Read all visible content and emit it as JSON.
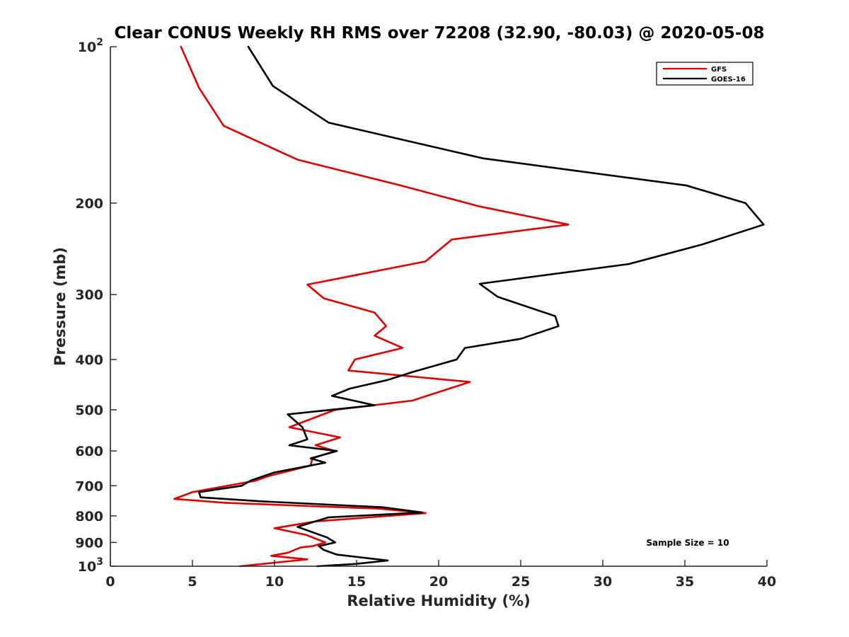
{
  "chart_data": {
    "type": "line",
    "title": "Clear CONUS Weekly RH RMS over 72208 (32.90, -80.03) @ 2020-05-08",
    "xlabel": "Relative Humidity (%)",
    "ylabel": "Pressure (mb)",
    "xlim": [
      0,
      40
    ],
    "ylim": [
      100,
      1000
    ],
    "yscale": "log",
    "y_reversed": true,
    "grid": false,
    "legend_position": "top-right",
    "annotation": "Sample Size = 10",
    "x_ticks": [
      "0",
      "5",
      "10",
      "15",
      "20",
      "25",
      "30",
      "35",
      "40"
    ],
    "y_ticks": [
      {
        "value": 100,
        "base": "10",
        "exp": "2"
      },
      {
        "value": 200,
        "base": "200",
        "exp": ""
      },
      {
        "value": 300,
        "base": "300",
        "exp": ""
      },
      {
        "value": 400,
        "base": "400",
        "exp": ""
      },
      {
        "value": 500,
        "base": "500",
        "exp": ""
      },
      {
        "value": 600,
        "base": "600",
        "exp": ""
      },
      {
        "value": 700,
        "base": "700",
        "exp": ""
      },
      {
        "value": 800,
        "base": "800",
        "exp": ""
      },
      {
        "value": 900,
        "base": "900",
        "exp": ""
      },
      {
        "value": 1000,
        "base": "10",
        "exp": "3"
      }
    ],
    "series": [
      {
        "name": "GFS",
        "color": "#e00000",
        "points": [
          [
            4.3,
            100
          ],
          [
            5.4,
            120
          ],
          [
            6.9,
            142
          ],
          [
            11.4,
            165
          ],
          [
            17.7,
            185
          ],
          [
            22.5,
            203
          ],
          [
            27.9,
            220
          ],
          [
            20.8,
            235
          ],
          [
            19.2,
            259
          ],
          [
            12.0,
            287
          ],
          [
            13.0,
            305
          ],
          [
            16.1,
            325
          ],
          [
            16.8,
            345
          ],
          [
            16.1,
            360
          ],
          [
            17.8,
            380
          ],
          [
            14.9,
            400
          ],
          [
            14.5,
            420
          ],
          [
            21.9,
            442
          ],
          [
            18.4,
            480
          ],
          [
            13.7,
            500
          ],
          [
            10.9,
            540
          ],
          [
            14.0,
            565
          ],
          [
            12.5,
            585
          ],
          [
            13.7,
            600
          ],
          [
            12.3,
            620
          ],
          [
            12.2,
            640
          ],
          [
            9.7,
            670
          ],
          [
            8.8,
            685
          ],
          [
            5.0,
            720
          ],
          [
            3.9,
            742
          ],
          [
            7.0,
            755
          ],
          [
            16.4,
            775
          ],
          [
            19.2,
            790
          ],
          [
            12.5,
            820
          ],
          [
            10.0,
            845
          ],
          [
            11.9,
            870
          ],
          [
            13.1,
            900
          ],
          [
            12.3,
            915
          ],
          [
            11.6,
            920
          ],
          [
            10.8,
            942
          ],
          [
            9.8,
            955
          ],
          [
            12.0,
            970
          ],
          [
            7.9,
            1000
          ]
        ]
      },
      {
        "name": "GOES-16",
        "color": "#000000",
        "points": [
          [
            8.4,
            100
          ],
          [
            9.9,
            119
          ],
          [
            13.3,
            140
          ],
          [
            22.7,
            164
          ],
          [
            35.1,
            185
          ],
          [
            38.7,
            200
          ],
          [
            39.8,
            220
          ],
          [
            36.1,
            240
          ],
          [
            31.6,
            262
          ],
          [
            22.5,
            286
          ],
          [
            23.6,
            303
          ],
          [
            27.1,
            330
          ],
          [
            27.3,
            345
          ],
          [
            25.0,
            365
          ],
          [
            21.6,
            380
          ],
          [
            21.1,
            400
          ],
          [
            18.5,
            422
          ],
          [
            16.9,
            438
          ],
          [
            14.6,
            455
          ],
          [
            13.5,
            470
          ],
          [
            16.1,
            490
          ],
          [
            10.8,
            510
          ],
          [
            11.7,
            540
          ],
          [
            12.0,
            570
          ],
          [
            10.9,
            585
          ],
          [
            13.8,
            600
          ],
          [
            12.6,
            615
          ],
          [
            12.2,
            620
          ],
          [
            13.1,
            632
          ],
          [
            10.0,
            660
          ],
          [
            8.6,
            683
          ],
          [
            8.0,
            700
          ],
          [
            5.4,
            720
          ],
          [
            5.5,
            737
          ],
          [
            9.2,
            750
          ],
          [
            16.6,
            770
          ],
          [
            19.0,
            788
          ],
          [
            13.3,
            805
          ],
          [
            11.4,
            840
          ],
          [
            13.2,
            880
          ],
          [
            13.7,
            900
          ],
          [
            12.7,
            915
          ],
          [
            13.0,
            930
          ],
          [
            13.8,
            950
          ],
          [
            16.9,
            975
          ],
          [
            14.9,
            990
          ],
          [
            12.6,
            1000
          ]
        ]
      }
    ]
  }
}
